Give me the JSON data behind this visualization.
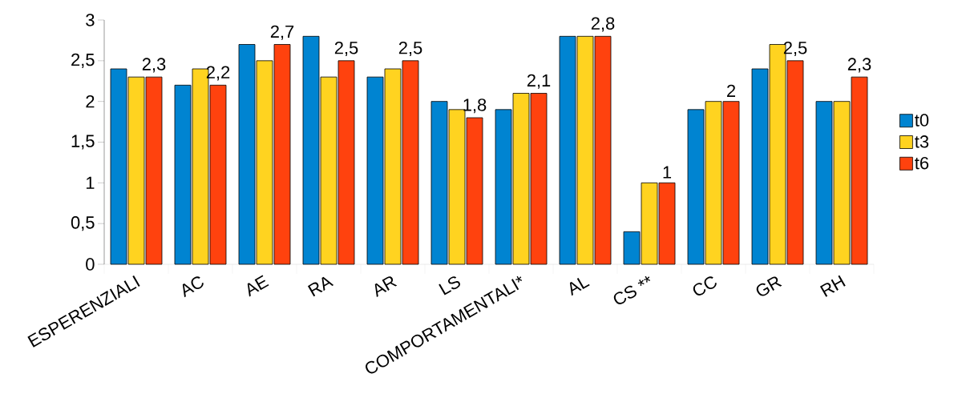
{
  "chart_data": {
    "type": "bar",
    "categories": [
      "ESPERENZIALI",
      "AC",
      "AE",
      "RA",
      "AR",
      "LS",
      "COMPORTAMENTALI*",
      "AL",
      "CS **",
      "CC",
      "GR",
      "RH"
    ],
    "series": [
      {
        "name": "t0",
        "color": "#0084d1",
        "values": [
          2.4,
          2.2,
          2.7,
          2.8,
          2.3,
          2.0,
          1.9,
          2.8,
          0.4,
          1.9,
          2.4,
          2.0
        ]
      },
      {
        "name": "t3",
        "color": "#ffd320",
        "values": [
          2.3,
          2.4,
          2.5,
          2.3,
          2.4,
          1.9,
          2.1,
          2.8,
          1.0,
          2.0,
          2.7,
          2.0
        ]
      },
      {
        "name": "t6",
        "color": "#ff420e",
        "values": [
          2.3,
          2.2,
          2.7,
          2.5,
          2.5,
          1.8,
          2.1,
          2.8,
          1.0,
          2.0,
          2.5,
          2.3
        ],
        "value_labels": [
          "2,3",
          "2,2",
          "2,7",
          "2,5",
          "2,5",
          "1,8",
          "2,1",
          "2,8",
          "1",
          "2",
          "2,5",
          "2,3"
        ]
      }
    ],
    "ylim": [
      0,
      3
    ],
    "yticks": [
      0,
      {
        "value": 0.5,
        "label": "0,5"
      },
      1,
      {
        "value": 1.5,
        "label": "1,5"
      },
      2,
      {
        "value": 2.5,
        "label": "2,5"
      },
      3
    ],
    "grid": false,
    "legend": "right"
  }
}
